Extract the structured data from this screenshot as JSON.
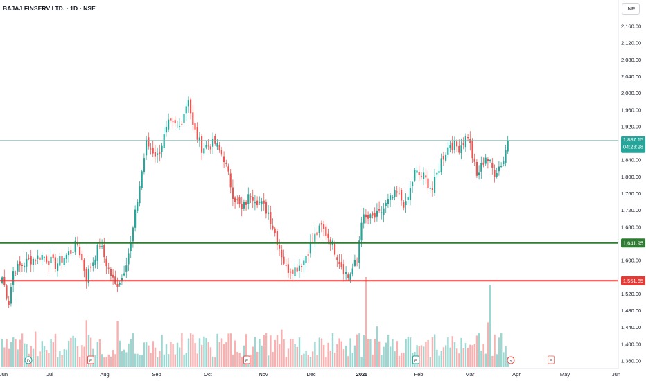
{
  "title": "BAJAJ FINSERV LTD. · 1D · NSE",
  "currency_label": "INR",
  "price_labels": {
    "last": "1,887.15",
    "countdown": "04:23:28",
    "support": "1,641.95",
    "support_secondary": "1,551.65"
  },
  "colors": {
    "up": "#26a69a",
    "down": "#ef5350",
    "support": "#2e7d32",
    "resistance": "#e53935",
    "last_line": "#6fb7b0"
  },
  "chart_data": {
    "type": "candlestick",
    "y_ticks": [
      "2,160.00",
      "2,120.00",
      "2,080.00",
      "2,040.00",
      "2,000.00",
      "1,960.00",
      "1,920.00",
      "1,880.00",
      "1,840.00",
      "1,800.00",
      "1,760.00",
      "1,720.00",
      "1,680.00",
      "1,640.00",
      "1,600.00",
      "1,560.00",
      "1,520.00",
      "1,480.00",
      "1,440.00",
      "1,400.00",
      "1,360.00"
    ],
    "x_ticks": [
      "Jun",
      "Jul",
      "Aug",
      "Sep",
      "Oct",
      "Nov",
      "Dec",
      "2025",
      "Feb",
      "Mar",
      "Apr",
      "May",
      "Jun"
    ],
    "ylim": [
      1345,
      2180
    ],
    "last_price": 1887.15,
    "horizontal_lines": [
      {
        "value": 1641.95,
        "color": "#2e7d32",
        "label": "1,641.95"
      },
      {
        "value": 1551.65,
        "color": "#e53935",
        "label": "1,551.65"
      }
    ],
    "event_markers": [
      {
        "month": "Jun",
        "offset": 0.45,
        "letter": "D"
      },
      {
        "month": "Aug",
        "offset": -0.25,
        "letter": "E"
      },
      {
        "month": "Nov",
        "offset": -0.3,
        "letter": "E"
      },
      {
        "month": "Feb",
        "offset": -0.05,
        "letter": "E"
      },
      {
        "month": "Apr",
        "offset": -0.1,
        "letter": "⚡"
      },
      {
        "month": "May",
        "offset": -0.25,
        "letter": "E"
      }
    ],
    "anchors": [
      [
        0,
        1560
      ],
      [
        3,
        1500
      ],
      [
        5,
        1575
      ],
      [
        12,
        1600
      ],
      [
        18,
        1612
      ],
      [
        24,
        1590
      ],
      [
        30,
        1617
      ],
      [
        34,
        1640
      ],
      [
        38,
        1560
      ],
      [
        44,
        1640
      ],
      [
        48,
        1578
      ],
      [
        51,
        1540
      ],
      [
        54,
        1560
      ],
      [
        58,
        1640
      ],
      [
        62,
        1780
      ],
      [
        65,
        1880
      ],
      [
        70,
        1850
      ],
      [
        75,
        1925
      ],
      [
        80,
        1920
      ],
      [
        84,
        1990
      ],
      [
        86,
        1920
      ],
      [
        90,
        1870
      ],
      [
        96,
        1880
      ],
      [
        100,
        1845
      ],
      [
        104,
        1760
      ],
      [
        108,
        1720
      ],
      [
        112,
        1760
      ],
      [
        116,
        1740
      ],
      [
        120,
        1715
      ],
      [
        124,
        1650
      ],
      [
        128,
        1580
      ],
      [
        132,
        1580
      ],
      [
        136,
        1600
      ],
      [
        140,
        1650
      ],
      [
        144,
        1680
      ],
      [
        148,
        1650
      ],
      [
        152,
        1600
      ],
      [
        156,
        1560
      ],
      [
        160,
        1600
      ],
      [
        162,
        1700
      ],
      [
        166,
        1700
      ],
      [
        170,
        1710
      ],
      [
        174,
        1740
      ],
      [
        178,
        1760
      ],
      [
        182,
        1730
      ],
      [
        186,
        1810
      ],
      [
        190,
        1800
      ],
      [
        194,
        1770
      ],
      [
        198,
        1840
      ],
      [
        202,
        1880
      ],
      [
        206,
        1870
      ],
      [
        210,
        1900
      ],
      [
        214,
        1800
      ],
      [
        218,
        1850
      ],
      [
        222,
        1810
      ],
      [
        226,
        1840
      ],
      [
        228,
        1887
      ]
    ]
  }
}
